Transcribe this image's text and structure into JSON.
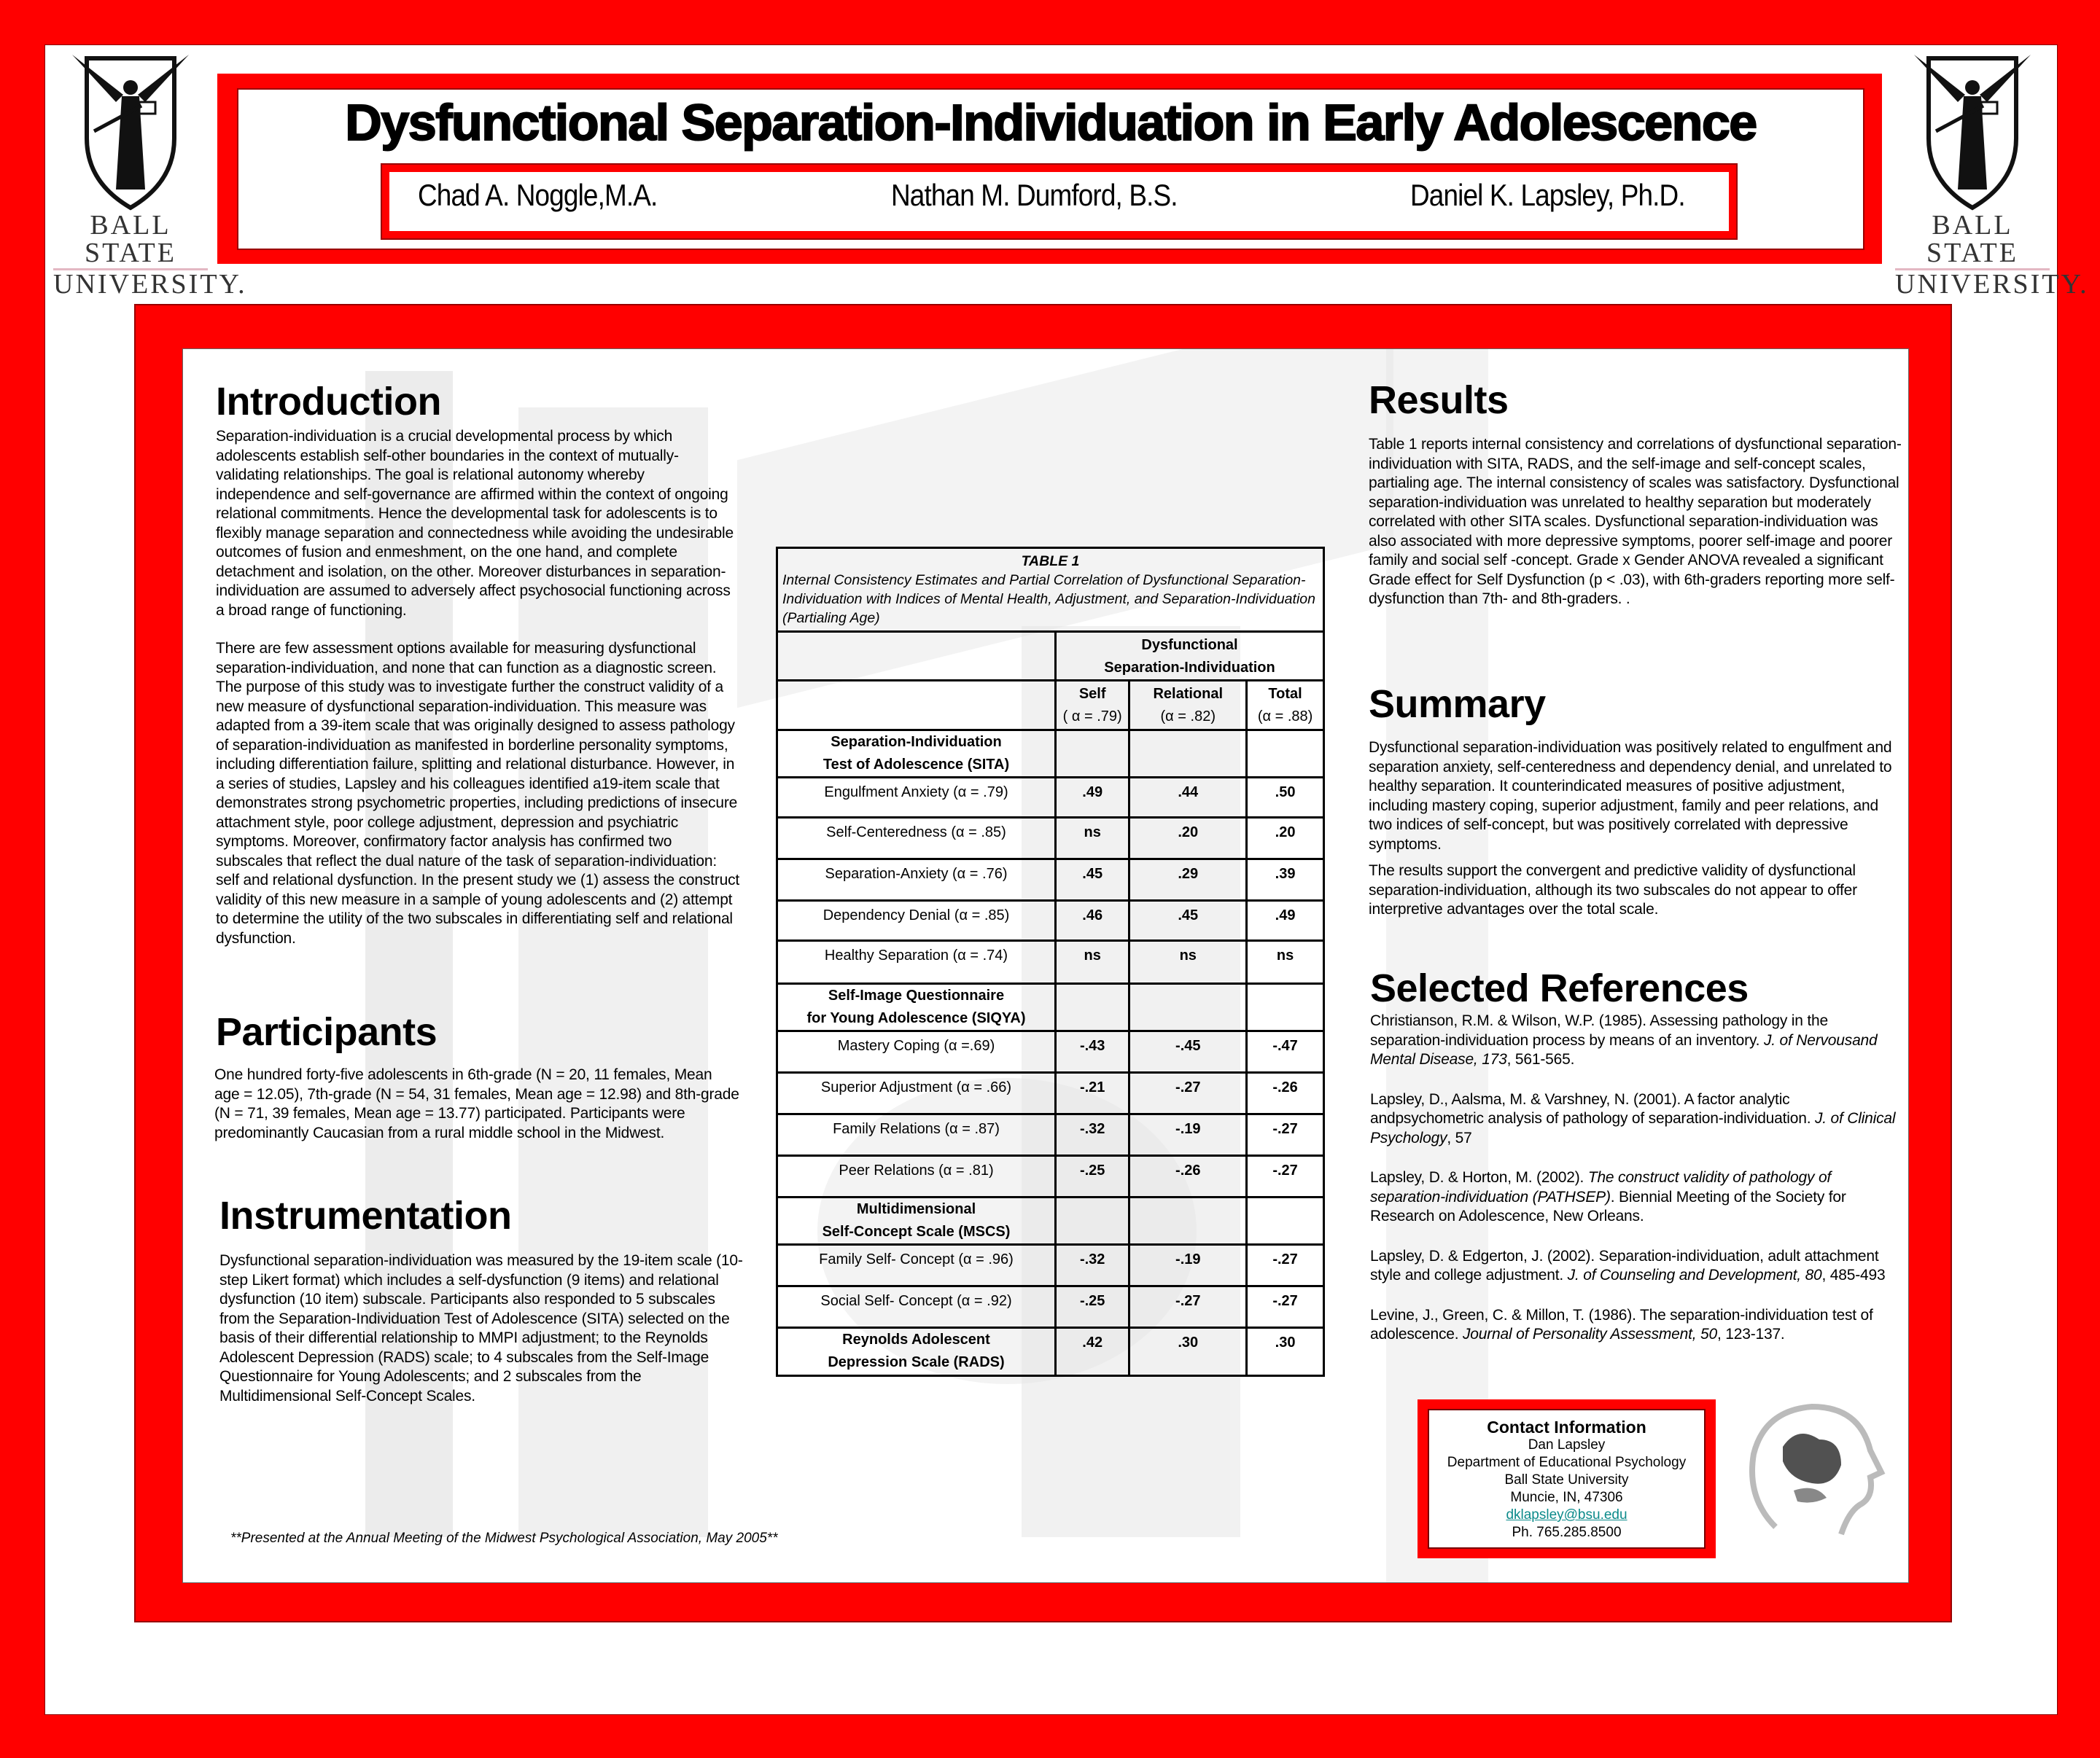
{
  "logo": {
    "line1": "BALL STATE",
    "line2": "UNIVERSITY."
  },
  "title": "Dysfunctional Separation-Individuation in Early Adolescence",
  "authors": [
    "Chad A. Noggle,M.A.",
    "Nathan M. Dumford, B.S.",
    "Daniel K. Lapsley, Ph.D."
  ],
  "colors": {
    "frame": "#ff0000",
    "link": "#0b8a8a",
    "watermark": "#e4e4e4"
  },
  "introduction": {
    "heading": "Introduction",
    "paragraphs": [
      "Separation-individuation is a crucial developmental process by which adolescents establish self-other boundaries in the context of mutually-validating relationships. The goal is relational autonomy whereby independence and self-governance are affirmed within the context of ongoing relational commitments.  Hence the developmental task for adolescents is to flexibly manage separation and connectedness while avoiding the undesirable outcomes of fusion and enmeshment, on the one hand, and complete detachment and isolation, on the other. Moreover disturbances in separation-individuation are assumed to adversely affect psychosocial functioning across a broad range of functioning.",
      "There are few assessment options available for measuring dysfunctional separation-individuation, and none that can function as a diagnostic screen. The purpose of this study was to investigate further the construct validity of a new measure of dysfunctional separation-individuation. This measure was adapted from a 39-item scale that was originally designed to assess pathology of separation-individuation as manifested in borderline personality symptoms, including differentiation failure, splitting and relational disturbance. However, in a series of studies, Lapsley and his colleagues identified a19-item scale that demonstrates strong psychometric properties, including predictions of insecure attachment style, poor college adjustment, depression and psychiatric symptoms. Moreover, confirmatory factor analysis has confirmed two subscales that reflect the dual nature of the task of separation-individuation: self and relational dysfunction.  In the present study we (1) assess the construct validity of this new measure in a sample of young adolescents and (2) attempt to determine the utility of the two subscales in differentiating self and relational dysfunction."
    ]
  },
  "participants": {
    "heading": "Participants",
    "text": "One hundred forty-five adolescents in 6th-grade (N = 20, 11 females, Mean age = 12.05), 7th-grade (N = 54, 31 females, Mean age = 12.98) and 8th-grade (N = 71, 39 females, Mean age = 13.77) participated. Participants were predominantly Caucasian from a rural middle school in the Midwest."
  },
  "instrumentation": {
    "heading": "Instrumentation",
    "text": "Dysfunctional separation-individuation was measured by the 19-item scale (10-step Likert format) which includes a self-dysfunction (9 items) and relational dysfunction (10 item) subscale.  Participants also responded to 5 subscales from the Separation-Individuation Test of Adolescence (SITA) selected on the basis of their differential relationship to MMPI adjustment; to the Reynolds Adolescent Depression (RADS) scale; to 4 subscales from the Self-Image Questionnaire for Young Adolescents; and 2 subscales from the Multidimensional Self-Concept Scales."
  },
  "footnote": "**Presented at the Annual Meeting of the Midwest Psychological Association, May 2005**",
  "table": {
    "number": "TABLE 1",
    "caption": "Internal Consistency Estimates and Partial Correlation of Dysfunctional Separation-Individuation with Indices of Mental Health, Adjustment, and Separation-Individuation (Partialing Age)",
    "group_header": [
      "Dysfunctional",
      "Separation-Individuation"
    ],
    "columns": [
      {
        "name": "Self",
        "alpha": "( α = .79)"
      },
      {
        "name": "Relational",
        "alpha": "(α = .82)"
      },
      {
        "name": "Total",
        "alpha": "(α = .88)"
      }
    ],
    "sections": [
      {
        "title": [
          "Separation-Individuation",
          "Test of Adolescence (SITA)"
        ],
        "rows": [
          {
            "label": "Engulfment Anxiety (α = .79)",
            "values": [
              ".49",
              ".44",
              ".50"
            ]
          },
          {
            "label": "Self-Centeredness (α  = .85)",
            "values": [
              "ns",
              ".20",
              ".20"
            ]
          },
          {
            "label": "Separation-Anxiety (α = .76)",
            "values": [
              ".45",
              ".29",
              ".39"
            ]
          },
          {
            "label": "Dependency Denial (α = .85)",
            "values": [
              ".46",
              ".45",
              ".49"
            ]
          },
          {
            "label": "Healthy Separation (α = .74)",
            "values": [
              "ns",
              "ns",
              "ns"
            ]
          }
        ]
      },
      {
        "title": [
          "Self-Image Questionnaire",
          "for Young Adolescence (SIQYA)"
        ],
        "rows": [
          {
            "label": "Mastery Coping (α =.69)",
            "values": [
              "-.43",
              "-.45",
              "-.47"
            ]
          },
          {
            "label": "Superior Adjustment (α = .66)",
            "values": [
              "-.21",
              "-.27",
              "-.26"
            ]
          },
          {
            "label": "Family Relations (α  = .87)",
            "values": [
              "-.32",
              "-.19",
              "-.27"
            ]
          },
          {
            "label": "Peer Relations (α = .81)",
            "values": [
              "-.25",
              "-.26",
              "-.27"
            ]
          }
        ]
      },
      {
        "title": [
          "Multidimensional",
          "Self-Concept Scale (MSCS)"
        ],
        "rows": [
          {
            "label": "Family Self- Concept (α = .96)",
            "values": [
              "-.32",
              "-.19",
              "-.27"
            ]
          },
          {
            "label": "Social Self- Concept (α = .92)",
            "values": [
              "-.25",
              "-.27",
              "-.27"
            ]
          }
        ]
      }
    ],
    "final_row": {
      "label": [
        "Reynolds Adolescent",
        "Depression Scale (RADS)"
      ],
      "values": [
        ".42",
        ".30",
        ".30"
      ]
    }
  },
  "results": {
    "heading": "Results",
    "text": "Table 1 reports internal consistency and correlations of dysfunctional separation-individuation with SITA, RADS, and the self-image and self-concept scales, partialing age.  The internal consistency of scales was satisfactory.  Dysfunctional separation-individuation was unrelated to healthy separation but moderately correlated with other SITA scales. Dysfunctional separation-individuation was also associated with more depressive symptoms, poorer self-image and poorer family and social self -concept. Grade x Gender ANOVA revealed a significant Grade  effect for Self Dysfunction (p < .03), with 6th-graders reporting more self-dysfunction than 7th- and 8th-graders. ."
  },
  "summary": {
    "heading": "Summary",
    "paragraphs": [
      "Dysfunctional separation-individuation was positively related to engulfment and separation anxiety, self-centeredness and dependency denial, and unrelated to healthy separation.  It counterindicated measures of positive adjustment, including mastery coping, superior adjustment, family and peer relations, and two indices of self-concept, but was positively correlated with depressive symptoms.",
      "The results support the convergent and predictive validity of dysfunctional separation-individuation, although its two subscales do not appear to offer interpretive advantages over the total scale."
    ]
  },
  "references": {
    "heading": "Selected References",
    "items": [
      {
        "pre": "Christianson, R.M. & Wilson, W.P. (1985). Assessing pathology in the separation-individuation process by means of an inventory. ",
        "ital": "J. of Nervousand Mental Disease, 173",
        "post": ", 561-565."
      },
      {
        "pre": "Lapsley, D., Aalsma, M. & Varshney, N. (2001).  A factor analytic andpsychometric analysis of pathology of separation-individuation.  ",
        "ital": "J. of Clinical Psychology",
        "post": ", 57"
      },
      {
        "pre": "Lapsley, D. & Horton, M. (2002).  ",
        "ital": "The construct validity of pathology of separation-individuation (PATHSEP)",
        "post": ". Biennial Meeting of the Society for Research on Adolescence, New Orleans."
      },
      {
        "pre": "Lapsley, D. & Edgerton, J. (2002).  Separation-individuation, adult attachment style and college adjustment. ",
        "ital": "J. of Counseling and Development, 80",
        "post": ", 485-493"
      },
      {
        "pre": "Levine, J., Green, C. & Millon, T. (1986).  The separation-individuation test of adolescence. ",
        "ital": "Journal of Personality Assessment, 50",
        "post": ", 123-137."
      }
    ]
  },
  "contact": {
    "heading": "Contact Information",
    "name": "Dan Lapsley",
    "department": "Department of Educational Psychology",
    "university": "Ball State University",
    "address": "Muncie, IN,  47306",
    "email": "dklapsley@bsu.edu",
    "phone": "Ph. 765.285.8500"
  }
}
